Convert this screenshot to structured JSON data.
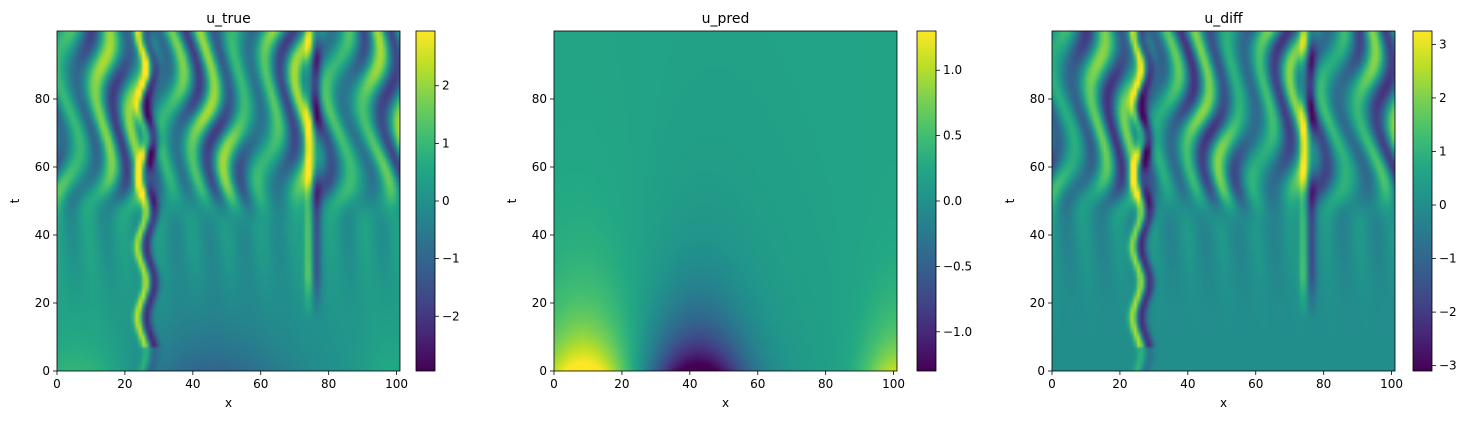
{
  "chart_data": [
    {
      "type": "heatmap",
      "title": "u_true",
      "xlabel": "x",
      "ylabel": "t",
      "xlim": [
        0,
        101
      ],
      "ylim": [
        0,
        100
      ],
      "x_ticks": [
        "0",
        "20",
        "40",
        "60",
        "80",
        "100"
      ],
      "x_tick_values": [
        0,
        20,
        40,
        60,
        80,
        100
      ],
      "y_ticks": [
        "0",
        "20",
        "40",
        "60",
        "80"
      ],
      "y_tick_values": [
        0,
        20,
        40,
        60,
        80
      ],
      "colormap": "viridis",
      "colorbar": {
        "range": [
          -2.95,
          2.95
        ],
        "ticks": [
          "−2",
          "−1",
          "0",
          "1",
          "2"
        ],
        "tick_values": [
          -2,
          -1,
          0,
          1,
          2
        ]
      },
      "field": "kuramoto-sivashinsky chaotic stripes: smooth for t<45, vertical stripes at x≈25 and x≈74, branching pattern for t>50"
    },
    {
      "type": "heatmap",
      "title": "u_pred",
      "xlabel": "x",
      "ylabel": "t",
      "xlim": [
        0,
        101
      ],
      "ylim": [
        0,
        100
      ],
      "x_ticks": [
        "0",
        "20",
        "40",
        "60",
        "80",
        "100"
      ],
      "x_tick_values": [
        0,
        20,
        40,
        60,
        80,
        100
      ],
      "y_ticks": [
        "0",
        "20",
        "40",
        "60",
        "80"
      ],
      "y_tick_values": [
        0,
        20,
        40,
        60,
        80
      ],
      "colormap": "viridis",
      "colorbar": {
        "range": [
          -1.3,
          1.3
        ],
        "ticks": [
          "−1.0",
          "−0.5",
          "0.0",
          "0.5",
          "1.0"
        ],
        "tick_values": [
          -1.0,
          -0.5,
          0.0,
          0.5,
          1.0
        ]
      },
      "field": "smooth field: bright peak near x≈10,t≈0; dark minimum near x≈42,t≈0; relaxes to ≈0.2 for large t"
    },
    {
      "type": "heatmap",
      "title": "u_diff",
      "xlabel": "x",
      "ylabel": "t",
      "xlim": [
        0,
        101
      ],
      "ylim": [
        0,
        100
      ],
      "x_ticks": [
        "0",
        "20",
        "40",
        "60",
        "80",
        "100"
      ],
      "x_tick_values": [
        0,
        20,
        40,
        60,
        80,
        100
      ],
      "y_ticks": [
        "0",
        "20",
        "40",
        "60",
        "80"
      ],
      "y_tick_values": [
        0,
        20,
        40,
        60,
        80
      ],
      "colormap": "viridis",
      "colorbar": {
        "range": [
          -3.1,
          3.25
        ],
        "ticks": [
          "−3",
          "−2",
          "−1",
          "0",
          "1",
          "2",
          "3"
        ],
        "tick_values": [
          -3,
          -2,
          -1,
          0,
          1,
          2,
          3
        ]
      },
      "field": "u_true minus u_pred: same stripe pattern as u_true, flatter background near 0 for t<45"
    }
  ]
}
